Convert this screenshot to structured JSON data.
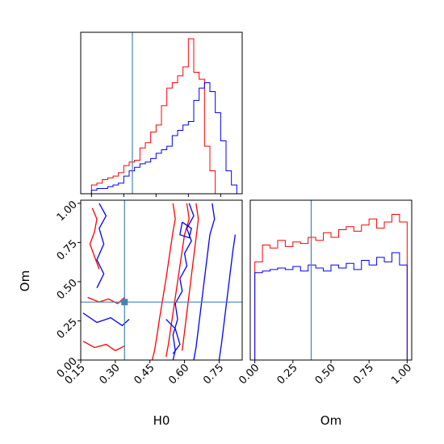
{
  "colors": {
    "truth": "#4682b4",
    "series_a": "#ff0000",
    "series_b": "#0000ff"
  },
  "chart_data": [
    {
      "type": "histogram",
      "panel": "H0 marginal",
      "xlim": [
        0.1,
        0.85
      ],
      "bin_edges": [
        0.1,
        0.125,
        0.15,
        0.175,
        0.2,
        0.225,
        0.25,
        0.275,
        0.3,
        0.325,
        0.35,
        0.375,
        0.4,
        0.425,
        0.45,
        0.475,
        0.5,
        0.525,
        0.55,
        0.575,
        0.6,
        0.625,
        0.65,
        0.675,
        0.7,
        0.725,
        0.75,
        0.775,
        0.8,
        0.825,
        0.85
      ],
      "series": [
        {
          "color": "red",
          "counts": [
            0,
            0,
            0.05,
            0.06,
            0.08,
            0.09,
            0.1,
            0.12,
            0.16,
            0.18,
            0.19,
            0.26,
            0.29,
            0.35,
            0.39,
            0.5,
            0.6,
            0.63,
            0.67,
            0.72,
            0.88,
            0.69,
            0.65,
            0.27,
            0.13,
            0,
            0,
            0,
            0,
            0
          ]
        },
        {
          "color": "blue",
          "counts": [
            0,
            0,
            0.02,
            0.03,
            0.03,
            0.04,
            0.05,
            0.06,
            0.1,
            0.13,
            0.15,
            0.17,
            0.18,
            0.2,
            0.23,
            0.25,
            0.27,
            0.33,
            0.36,
            0.39,
            0.41,
            0.53,
            0.6,
            0.63,
            0.58,
            0.46,
            0.3,
            0.13,
            0.05,
            0
          ]
        }
      ],
      "truth": 0.34
    },
    {
      "type": "contour",
      "panel": "H0 vs Om joint",
      "xlabel": "H0",
      "ylabel": "Om",
      "xlim": [
        0.15,
        0.85
      ],
      "ylim": [
        0.0,
        1.02
      ],
      "x_ticks": [
        "0.15",
        "0.30",
        "0.45",
        "0.60",
        "0.75"
      ],
      "y_ticks": [
        "0.00",
        "0.25",
        "0.50",
        "0.75",
        "1.00"
      ],
      "truth": [
        0.34,
        0.37
      ],
      "series": [
        {
          "color": "red",
          "contours": [
            [
              [
                0.55,
                1.0
              ],
              [
                0.56,
                0.9
              ],
              [
                0.55,
                0.82
              ],
              [
                0.54,
                0.72
              ],
              [
                0.53,
                0.62
              ],
              [
                0.52,
                0.52
              ],
              [
                0.51,
                0.43
              ],
              [
                0.5,
                0.34
              ],
              [
                0.49,
                0.25
              ],
              [
                0.48,
                0.15
              ],
              [
                0.47,
                0.06
              ],
              [
                0.46,
                0.0
              ]
            ],
            [
              [
                0.61,
                1.0
              ],
              [
                0.62,
                0.9
              ],
              [
                0.6,
                0.8
              ],
              [
                0.59,
                0.7
              ],
              [
                0.58,
                0.6
              ],
              [
                0.57,
                0.5
              ],
              [
                0.56,
                0.4
              ],
              [
                0.55,
                0.3
              ],
              [
                0.54,
                0.2
              ],
              [
                0.53,
                0.1
              ],
              [
                0.52,
                0.02
              ]
            ],
            [
              [
                0.65,
                1.0
              ],
              [
                0.66,
                0.9
              ],
              [
                0.65,
                0.78
              ],
              [
                0.64,
                0.66
              ],
              [
                0.63,
                0.54
              ],
              [
                0.62,
                0.42
              ],
              [
                0.61,
                0.3
              ],
              [
                0.6,
                0.18
              ],
              [
                0.59,
                0.06
              ]
            ],
            [
              [
                0.2,
                0.97
              ],
              [
                0.22,
                0.9
              ],
              [
                0.21,
                0.82
              ],
              [
                0.19,
                0.74
              ],
              [
                0.21,
                0.66
              ],
              [
                0.23,
                0.58
              ]
            ],
            [
              [
                0.18,
                0.4
              ],
              [
                0.23,
                0.37
              ],
              [
                0.27,
                0.39
              ],
              [
                0.31,
                0.36
              ],
              [
                0.34,
                0.4
              ]
            ],
            [
              [
                0.16,
                0.12
              ],
              [
                0.21,
                0.08
              ],
              [
                0.26,
                0.1
              ],
              [
                0.3,
                0.06
              ],
              [
                0.34,
                0.09
              ]
            ]
          ]
        },
        {
          "color": "blue",
          "contours": [
            [
              [
                0.62,
                1.0
              ],
              [
                0.64,
                0.92
              ],
              [
                0.61,
                0.84
              ],
              [
                0.63,
                0.76
              ],
              [
                0.6,
                0.68
              ],
              [
                0.61,
                0.6
              ],
              [
                0.58,
                0.52
              ],
              [
                0.59,
                0.44
              ],
              [
                0.56,
                0.36
              ],
              [
                0.57,
                0.26
              ],
              [
                0.55,
                0.16
              ],
              [
                0.56,
                0.06
              ],
              [
                0.55,
                0.0
              ]
            ],
            [
              [
                0.72,
                1.0
              ],
              [
                0.73,
                0.9
              ],
              [
                0.71,
                0.8
              ],
              [
                0.7,
                0.68
              ],
              [
                0.69,
                0.56
              ],
              [
                0.68,
                0.44
              ],
              [
                0.67,
                0.32
              ],
              [
                0.66,
                0.2
              ],
              [
                0.65,
                0.08
              ],
              [
                0.64,
                0.0
              ]
            ],
            [
              [
                0.82,
                0.8
              ],
              [
                0.81,
                0.7
              ],
              [
                0.8,
                0.58
              ],
              [
                0.79,
                0.46
              ],
              [
                0.78,
                0.34
              ],
              [
                0.77,
                0.22
              ],
              [
                0.76,
                0.1
              ],
              [
                0.75,
                0.0
              ]
            ],
            [
              [
                0.23,
                1.0
              ],
              [
                0.26,
                0.92
              ],
              [
                0.23,
                0.84
              ],
              [
                0.25,
                0.74
              ],
              [
                0.22,
                0.64
              ],
              [
                0.25,
                0.55
              ],
              [
                0.22,
                0.46
              ]
            ],
            [
              [
                0.16,
                0.3
              ],
              [
                0.22,
                0.24
              ],
              [
                0.28,
                0.27
              ],
              [
                0.33,
                0.22
              ],
              [
                0.36,
                0.26
              ]
            ],
            [
              [
                0.52,
                0.26
              ],
              [
                0.56,
                0.2
              ],
              [
                0.58,
                0.1
              ],
              [
                0.55,
                0.04
              ]
            ],
            [
              [
                0.59,
                0.88
              ],
              [
                0.63,
                0.84
              ],
              [
                0.62,
                0.78
              ],
              [
                0.58,
                0.8
              ],
              [
                0.59,
                0.88
              ]
            ]
          ]
        }
      ]
    },
    {
      "type": "histogram",
      "panel": "Om marginal",
      "xlabel": "Om",
      "xlim": [
        -0.03,
        1.03
      ],
      "x_ticks": [
        "0.00",
        "0.25",
        "0.50",
        "0.75",
        "1.00"
      ],
      "bin_edges": [
        0.0,
        0.05,
        0.1,
        0.15,
        0.2,
        0.25,
        0.3,
        0.35,
        0.4,
        0.45,
        0.5,
        0.55,
        0.6,
        0.65,
        0.7,
        0.75,
        0.8,
        0.85,
        0.9,
        0.95,
        1.0
      ],
      "series": [
        {
          "color": "red",
          "counts": [
            0.64,
            0.75,
            0.73,
            0.78,
            0.74,
            0.77,
            0.76,
            0.8,
            0.78,
            0.83,
            0.8,
            0.85,
            0.87,
            0.84,
            0.88,
            0.92,
            0.86,
            0.9,
            0.95,
            0.9
          ]
        },
        {
          "color": "blue",
          "counts": [
            0.57,
            0.58,
            0.59,
            0.6,
            0.59,
            0.61,
            0.58,
            0.62,
            0.6,
            0.58,
            0.62,
            0.6,
            0.63,
            0.59,
            0.65,
            0.62,
            0.67,
            0.64,
            0.7,
            0.62
          ]
        }
      ],
      "truth": 0.37
    }
  ]
}
